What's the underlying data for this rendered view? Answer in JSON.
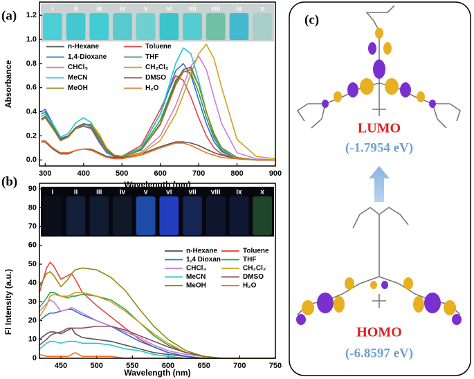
{
  "chart_data": [
    {
      "type": "line",
      "panel": "(a)",
      "x_label": "Wavelength (nm)",
      "y_label": "Absorbance",
      "photo_labels": [
        "i",
        "ii",
        "iii",
        "iv",
        "v",
        "vi",
        "vii",
        "viii",
        "ix",
        "x"
      ],
      "x": [
        290,
        300,
        320,
        340,
        360,
        380,
        400,
        420,
        440,
        460,
        480,
        500,
        550,
        600,
        640,
        660,
        680,
        700,
        720,
        740,
        760,
        800,
        850,
        900
      ],
      "xlim": [
        285,
        900
      ],
      "xticks": [
        300,
        400,
        500,
        600,
        700,
        800,
        900
      ],
      "ylim": [
        -0.05,
        1.31
      ],
      "yticks": [
        {
          "value": 0,
          "label": "0.0"
        },
        0.2,
        0.4,
        0.6,
        0.8,
        {
          "value": 1,
          "label": "1.0"
        },
        1.2
      ],
      "grid": false,
      "legend": "upper left",
      "series": [
        {
          "name": "n-Hexane",
          "color": "#555555",
          "values": [
            0.15,
            0.15,
            0.09,
            0.05,
            0.05,
            0.08,
            0.09,
            0.09,
            0.06,
            0.03,
            0.02,
            0.02,
            0.05,
            0.11,
            0.15,
            0.15,
            0.14,
            0.12,
            0.09,
            0.06,
            0.04,
            0.01,
            0,
            0
          ]
        },
        {
          "name": "Toluene",
          "color": "#e8413e",
          "values": [
            0.38,
            0.4,
            0.28,
            0.17,
            0.2,
            0.26,
            0.28,
            0.26,
            0.15,
            0.06,
            0.03,
            0.03,
            0.12,
            0.42,
            0.7,
            0.66,
            0.52,
            0.35,
            0.2,
            0.1,
            0.05,
            0.01,
            0,
            0
          ]
        },
        {
          "name": "1,4-Dioxane",
          "color": "#2a6fd6",
          "values": [
            0.4,
            0.42,
            0.3,
            0.18,
            0.2,
            0.26,
            0.28,
            0.27,
            0.16,
            0.06,
            0.03,
            0.03,
            0.1,
            0.38,
            0.74,
            0.8,
            0.7,
            0.5,
            0.3,
            0.15,
            0.07,
            0.01,
            0,
            0
          ]
        },
        {
          "name": "THF",
          "color": "#2e9e5a",
          "values": [
            0.38,
            0.4,
            0.28,
            0.17,
            0.2,
            0.27,
            0.3,
            0.28,
            0.17,
            0.07,
            0.03,
            0.03,
            0.09,
            0.33,
            0.66,
            0.74,
            0.72,
            0.56,
            0.35,
            0.18,
            0.08,
            0.01,
            0,
            0
          ]
        },
        {
          "name": "CHCl₃",
          "color": "#c77ddb",
          "values": [
            0.36,
            0.38,
            0.27,
            0.17,
            0.2,
            0.27,
            0.3,
            0.29,
            0.19,
            0.08,
            0.03,
            0.03,
            0.06,
            0.2,
            0.45,
            0.62,
            0.78,
            0.86,
            0.75,
            0.52,
            0.3,
            0.06,
            0.01,
            0
          ]
        },
        {
          "name": "CH₂Cl₂",
          "color": "#d4a017",
          "values": [
            0.33,
            0.35,
            0.26,
            0.16,
            0.19,
            0.26,
            0.29,
            0.3,
            0.22,
            0.1,
            0.04,
            0.03,
            0.05,
            0.16,
            0.38,
            0.54,
            0.72,
            0.88,
            0.96,
            0.84,
            0.6,
            0.17,
            0.03,
            0.01
          ]
        },
        {
          "name": "MeCN",
          "color": "#20c8d0",
          "values": [
            0.36,
            0.38,
            0.3,
            0.19,
            0.22,
            0.31,
            0.35,
            0.31,
            0.18,
            0.07,
            0.03,
            0.03,
            0.1,
            0.38,
            0.8,
            0.93,
            0.88,
            0.66,
            0.4,
            0.2,
            0.09,
            0.01,
            0,
            0
          ]
        },
        {
          "name": "DMSO",
          "color": "#8b4a5a",
          "values": [
            0.34,
            0.36,
            0.27,
            0.17,
            0.2,
            0.27,
            0.3,
            0.29,
            0.19,
            0.08,
            0.03,
            0.03,
            0.08,
            0.3,
            0.64,
            0.75,
            0.77,
            0.62,
            0.4,
            0.21,
            0.1,
            0.02,
            0,
            0
          ]
        },
        {
          "name": "MeOH",
          "color": "#8c8c14",
          "values": [
            0.33,
            0.35,
            0.26,
            0.16,
            0.19,
            0.26,
            0.29,
            0.29,
            0.2,
            0.09,
            0.04,
            0.03,
            0.08,
            0.29,
            0.62,
            0.73,
            0.75,
            0.62,
            0.4,
            0.22,
            0.1,
            0.02,
            0,
            0
          ]
        },
        {
          "name": "H₂O",
          "color": "#f07020",
          "values": [
            0.16,
            0.16,
            0.1,
            0.06,
            0.06,
            0.08,
            0.09,
            0.08,
            0.05,
            0.02,
            0.01,
            0.01,
            0.04,
            0.1,
            0.14,
            0.14,
            0.12,
            0.09,
            0.06,
            0.04,
            0.02,
            0.01,
            0,
            0
          ]
        }
      ]
    },
    {
      "type": "line",
      "panel": "(b)",
      "x_label": "Wavelength (nm)",
      "y_label": "Fl Intensity (a.u.)",
      "photo_labels": [
        "i",
        "ii",
        "iii",
        "iv",
        "v",
        "vi",
        "vii",
        "viii",
        "ix",
        "x"
      ],
      "x": [
        420,
        430,
        435,
        440,
        450,
        460,
        465,
        470,
        480,
        500,
        520,
        540,
        560,
        580,
        600,
        625,
        650,
        675,
        700,
        750
      ],
      "xlim": [
        420,
        750
      ],
      "xticks": [
        450,
        500,
        550,
        600,
        650,
        700,
        750
      ],
      "ylim": [
        0,
        93
      ],
      "yticks": [
        0,
        10,
        20,
        30,
        40,
        50,
        60,
        70,
        80,
        90
      ],
      "grid": false,
      "legend": "upper right",
      "series": [
        {
          "name": "n-Hexane",
          "color": "#555555",
          "values": [
            10,
            13,
            14,
            14,
            13,
            15,
            16,
            13,
            11,
            10,
            9,
            7,
            5,
            3,
            2,
            1,
            0,
            0,
            0,
            0
          ]
        },
        {
          "name": "Toluene",
          "color": "#e8413e",
          "values": [
            35,
            48,
            51,
            49,
            42,
            44,
            45,
            42,
            35,
            28,
            22,
            16,
            10,
            6,
            3,
            1,
            0,
            0,
            0,
            0
          ]
        },
        {
          "name": "1,4 Dioxan",
          "color": "#2a6fd6",
          "values": [
            20,
            23,
            24,
            24,
            25,
            26,
            26,
            25,
            23,
            20,
            17,
            13,
            9,
            6,
            3,
            1,
            0,
            0,
            0,
            0
          ]
        },
        {
          "name": "THF",
          "color": "#2e9e5a",
          "values": [
            27,
            32,
            35,
            35,
            33,
            32,
            33,
            33,
            34,
            33,
            31,
            26,
            19,
            12,
            7,
            3,
            1,
            0,
            0,
            0
          ]
        },
        {
          "name": "CHCl₃",
          "color": "#c77ddb",
          "values": [
            25,
            29,
            31,
            30,
            25,
            26,
            27,
            26,
            24,
            20,
            17,
            14,
            11,
            7,
            4,
            2,
            1,
            0,
            0,
            0
          ]
        },
        {
          "name": "CH₂Cl₂",
          "color": "#d4a017",
          "values": [
            22,
            28,
            33,
            34,
            33,
            33,
            34,
            35,
            35,
            33,
            30,
            25,
            19,
            13,
            8,
            3,
            1,
            0,
            0,
            0
          ]
        },
        {
          "name": "MeCN",
          "color": "#20c8d0",
          "values": [
            5,
            8,
            9,
            9,
            8,
            9,
            9,
            9,
            8,
            8,
            7,
            5,
            4,
            2,
            1,
            0,
            0,
            0,
            0,
            0
          ]
        },
        {
          "name": "DMSO",
          "color": "#8b4a5a",
          "values": [
            7,
            10,
            12,
            13,
            14,
            16,
            16,
            16,
            16,
            17,
            17,
            15,
            12,
            9,
            6,
            3,
            1,
            0,
            0,
            0
          ]
        },
        {
          "name": "MeOH",
          "color": "#8c8c14",
          "values": [
            38,
            45,
            46,
            44,
            38,
            42,
            45,
            47,
            48,
            47,
            43,
            36,
            26,
            17,
            10,
            4,
            1,
            0,
            0,
            0
          ]
        },
        {
          "name": "H₂O",
          "color": "#f07020",
          "values": [
            2,
            1,
            1,
            1,
            1,
            1,
            2,
            3,
            1,
            1,
            1,
            0,
            0,
            0,
            0,
            0,
            0,
            0,
            0,
            0
          ]
        }
      ]
    }
  ],
  "panel_c": {
    "panel": "(c)",
    "lumo": {
      "label": "LUMO",
      "energy": "(-1.7954 eV)"
    },
    "homo": {
      "label": "HOMO",
      "energy": "(-6.8597 eV)"
    }
  }
}
